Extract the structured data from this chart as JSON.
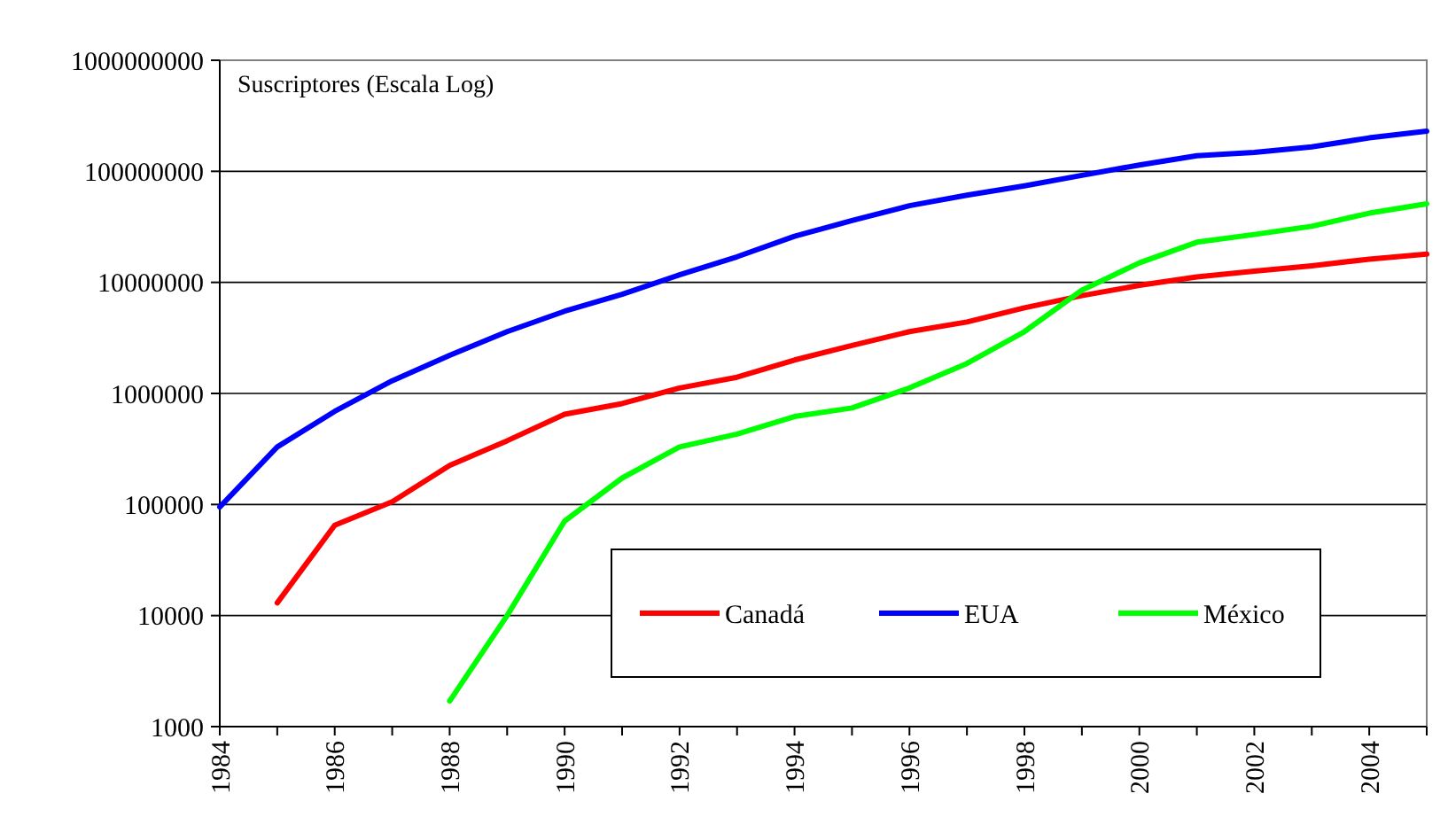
{
  "chart_data": {
    "type": "line",
    "ylabel": "Suscriptores (Escala Log)",
    "log": true,
    "grid": "y",
    "legend": "bottom right",
    "marker": "none",
    "line_style": "solid",
    "x": [
      1984,
      1985,
      1986,
      1987,
      1988,
      1989,
      1990,
      1991,
      1992,
      1993,
      1994,
      1995,
      1996,
      1997,
      1998,
      1999,
      2000,
      2001,
      2002,
      2003,
      2004,
      2005
    ],
    "xlim": [
      1984,
      2005
    ],
    "xticks": [
      1984,
      {
        "value": 1985,
        "label": null
      },
      1986,
      {
        "value": 1987,
        "label": null
      },
      1988,
      {
        "value": 1989,
        "label": null
      },
      1990,
      {
        "value": 1991,
        "label": null
      },
      1992,
      {
        "value": 1993,
        "label": null
      },
      1994,
      {
        "value": 1995,
        "label": null
      },
      1996,
      {
        "value": 1997,
        "label": null
      },
      1998,
      {
        "value": 1999,
        "label": null
      },
      2000,
      {
        "value": 2001,
        "label": null
      },
      2002,
      {
        "value": 2003,
        "label": null
      },
      2004,
      {
        "value": 2005,
        "label": null
      }
    ],
    "ylim": [
      1000,
      1000000000
    ],
    "yticks": [
      1000,
      10000,
      100000,
      1000000,
      10000000,
      100000000,
      1000000000
    ],
    "series": [
      {
        "name": "Canadá",
        "color": "#ff0000",
        "values": [
          null,
          13000,
          65000,
          106000,
          225000,
          375000,
          650000,
          810000,
          1120000,
          1400000,
          2000000,
          2700000,
          3600000,
          4400000,
          5900000,
          7600000,
          9400000,
          11200000,
          12600000,
          14100000,
          16200000,
          18000000
        ]
      },
      {
        "name": "EUA",
        "color": "#0000ff",
        "values": [
          95000,
          330000,
          690000,
          1300000,
          2200000,
          3600000,
          5500000,
          7800000,
          11700000,
          17000000,
          26000000,
          36000000,
          49000000,
          61000000,
          74000000,
          92000000,
          114000000,
          138000000,
          148000000,
          166000000,
          200000000,
          230000000
        ]
      },
      {
        "name": "México",
        "color": "#00ff00",
        "values": [
          null,
          null,
          null,
          null,
          1700,
          10000,
          71000,
          173000,
          330000,
          430000,
          620000,
          740000,
          1120000,
          1860000,
          3600000,
          8500000,
          15000000,
          23000000,
          27000000,
          32000000,
          42000000,
          51000000
        ]
      }
    ]
  }
}
